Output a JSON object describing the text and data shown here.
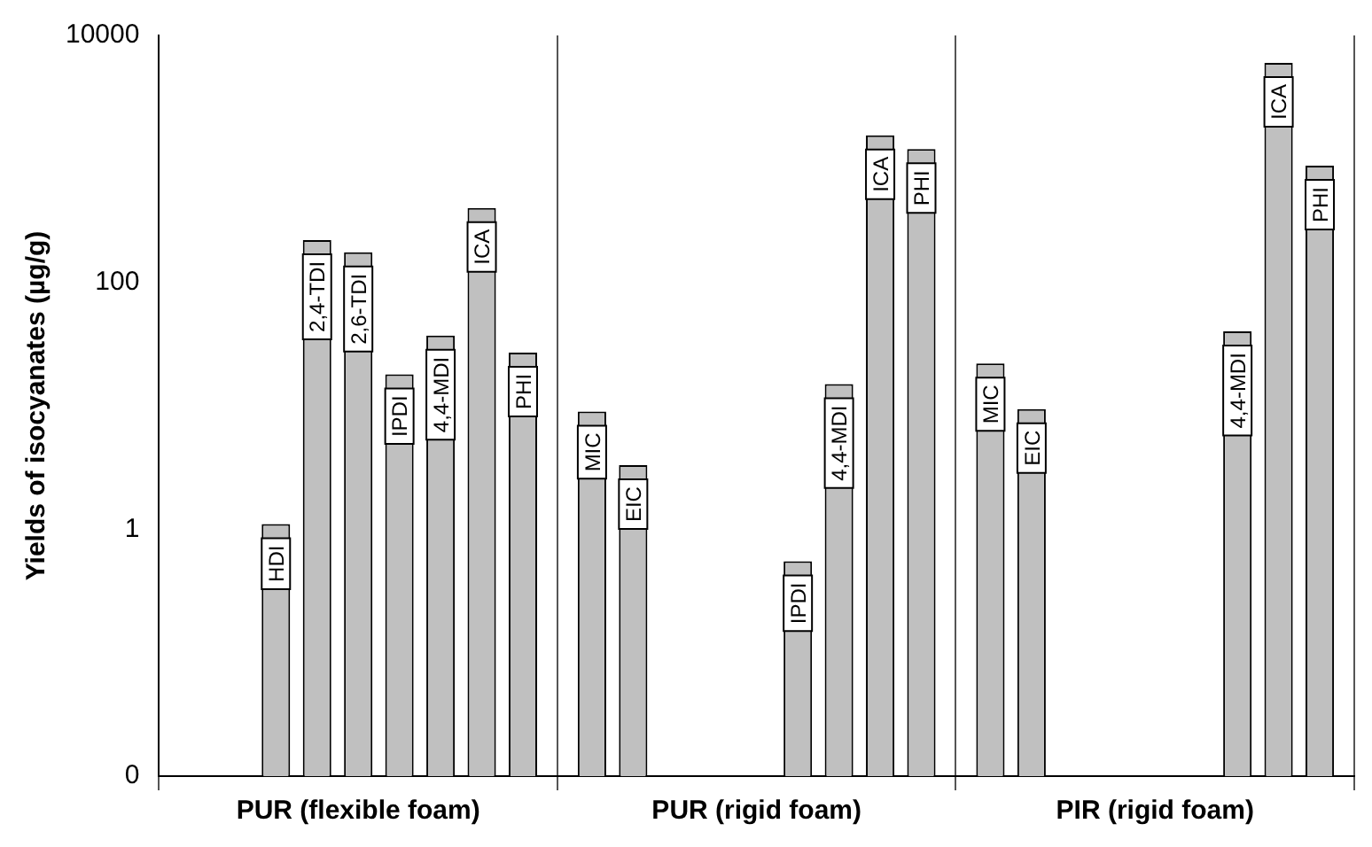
{
  "chart_data": {
    "type": "bar",
    "ylabel": "Yields of isocyanates (µg/g)",
    "categories": [
      "PUR (flexible foam)",
      "PUR (rigid foam)",
      "PIR (rigid foam)"
    ],
    "series": [
      {
        "name": "MIC",
        "color": "#c0c0c0",
        "values": [
          null,
          9,
          22
        ]
      },
      {
        "name": "EIC",
        "color": "#c0c0c0",
        "values": [
          null,
          3.3,
          9.4
        ]
      },
      {
        "name": "HDI",
        "color": "#c0c0c0",
        "values": [
          1.1,
          null,
          null
        ]
      },
      {
        "name": "2,4-TDI",
        "color": "#c0c0c0",
        "values": [
          220,
          null,
          null
        ]
      },
      {
        "name": "2,6-TDI",
        "color": "#c0c0c0",
        "values": [
          175,
          null,
          null
        ]
      },
      {
        "name": "IPDI",
        "color": "#c0c0c0",
        "values": [
          18,
          0.55,
          null
        ]
      },
      {
        "name": "4,4-MDI",
        "color": "#c0c0c0",
        "values": [
          37,
          15,
          40
        ]
      },
      {
        "name": "ICA",
        "color": "#c0c0c0",
        "values": [
          400,
          1550,
          6000
        ]
      },
      {
        "name": "PHI",
        "color": "#c0c0c0",
        "values": [
          27,
          1200,
          880
        ]
      }
    ],
    "log": "y",
    "ylim": [
      0.01,
      10000
    ],
    "yticks": [
      {
        "value": 0.01,
        "label": "0"
      },
      1,
      100,
      10000
    ],
    "grid": "x",
    "legend": false
  }
}
